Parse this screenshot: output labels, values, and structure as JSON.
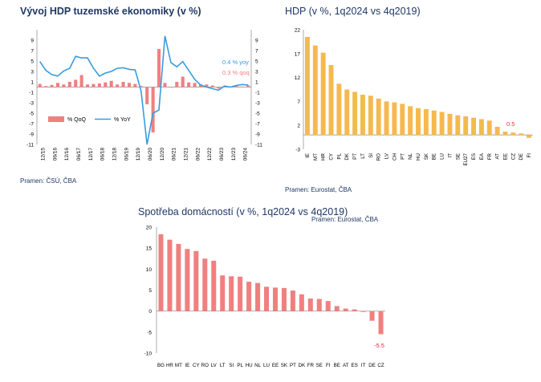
{
  "colors": {
    "accent_title": "#1F3864",
    "qoq_bar": "#F08080",
    "yoy_line": "#3A9BDC",
    "bar_orange": "#F5B94E",
    "bar_pink": "#F08080",
    "annotation_red": "#E0303A"
  },
  "chart_data": [
    {
      "type": "bar+line",
      "title": "Vývoj HDP tuzemské ekonomiky (v %)",
      "source": "Pramen: ČSÚ, ČBA",
      "ylim": [
        -11,
        11
      ],
      "yticks": [
        "9",
        "7",
        "5",
        "3",
        "1",
        "-1",
        "-3",
        "-5",
        "-7",
        "-9",
        "-11"
      ],
      "xtick_labels": [
        "12/15",
        "06/16",
        "12/16",
        "06/17",
        "12/17",
        "06/18",
        "12/18",
        "06/19",
        "12/19",
        "06/20",
        "12/20",
        "06/21",
        "12/21",
        "06/22",
        "12/22",
        "06/23",
        "12/23",
        "06/24"
      ],
      "legend": {
        "qoq": "% QoQ",
        "yoy": "% YoY"
      },
      "annotations": {
        "yoy": "0.4 % yoy",
        "qoq": "0.3 % qoq"
      },
      "series": [
        {
          "name": "% QoQ",
          "kind": "bar",
          "values": [
            0.6,
            0.2,
            0.4,
            0.8,
            0.5,
            1.0,
            1.4,
            2.3,
            0.5,
            0.6,
            0.7,
            0.9,
            1.2,
            0.5,
            1.0,
            0.8,
            0.6,
            0.2,
            -3.3,
            -8.7,
            7.3,
            0.8,
            -0.1,
            1.0,
            2.0,
            0.9,
            0.8,
            0.5,
            0.5,
            0.3,
            -0.3,
            0.1,
            0.1,
            0.2,
            0.1,
            0.3
          ]
        },
        {
          "name": "% YoY",
          "kind": "line",
          "values": [
            4.9,
            3.2,
            2.4,
            2.1,
            3.1,
            3.6,
            5.9,
            5.6,
            5.6,
            3.6,
            2.1,
            2.7,
            3.0,
            3.6,
            3.7,
            3.4,
            3.3,
            -0.8,
            -11.0,
            -5.0,
            -4.4,
            9.8,
            4.7,
            3.9,
            4.9,
            3.2,
            1.5,
            0.4,
            0.0,
            -0.3,
            -0.6,
            0.2,
            0.0,
            0.3,
            0.5,
            0.4
          ]
        }
      ]
    },
    {
      "type": "bar",
      "title": "HDP (v %, 1q2024 vs 4q2019)",
      "source": "Pramen: Eurostat, ČBA",
      "ylim": [
        -3,
        22
      ],
      "yticks": [
        "22",
        "17",
        "12",
        "7",
        "2",
        "-3"
      ],
      "categories": [
        "IE",
        "MT",
        "HR",
        "CY",
        "PL",
        "DK",
        "PT",
        "LT",
        "SI",
        "RO",
        "LV",
        "CH",
        "PT",
        "NL",
        "HU",
        "SK",
        "BE",
        "LU",
        "IT",
        "SE",
        "EU27",
        "ES",
        "EA",
        "FR",
        "AT",
        "EE",
        "CZ",
        "DE",
        "FI"
      ],
      "values": [
        20.5,
        18.7,
        17.2,
        14.6,
        10.7,
        9.5,
        9.0,
        8.4,
        8.2,
        7.6,
        7.0,
        6.8,
        6.5,
        6.0,
        5.6,
        5.4,
        5.1,
        4.8,
        4.4,
        4.1,
        3.9,
        3.6,
        3.3,
        3.0,
        1.7,
        0.7,
        0.5,
        0.3,
        -0.6
      ],
      "annotation": "0.5"
    },
    {
      "type": "bar",
      "title": "Spotřeba domácností (v %, 1q2024 vs 4q2019)",
      "source": "Pramen: Eurostat, ČBA",
      "ylim": [
        -10,
        20
      ],
      "yticks": [
        "20",
        "15",
        "10",
        "5",
        "0",
        "-5",
        "-10"
      ],
      "categories": [
        "BG",
        "HR",
        "MT",
        "IE",
        "CY",
        "RO",
        "LV",
        "LT",
        "SI",
        "PL",
        "HU",
        "NL",
        "LU",
        "EE",
        "SK",
        "PT",
        "DK",
        "FR",
        "SE",
        "FI",
        "BE",
        "AT",
        "ES",
        "IT",
        "DE",
        "CZ"
      ],
      "values": [
        18.3,
        17.0,
        16.0,
        14.8,
        14.3,
        12.5,
        12.0,
        8.5,
        8.3,
        8.2,
        7.0,
        6.7,
        5.8,
        5.6,
        5.5,
        4.9,
        4.0,
        3.0,
        2.9,
        2.4,
        1.2,
        0.6,
        0.4,
        -0.2,
        -2.3,
        -5.5
      ],
      "annotation": "-5.5"
    }
  ]
}
